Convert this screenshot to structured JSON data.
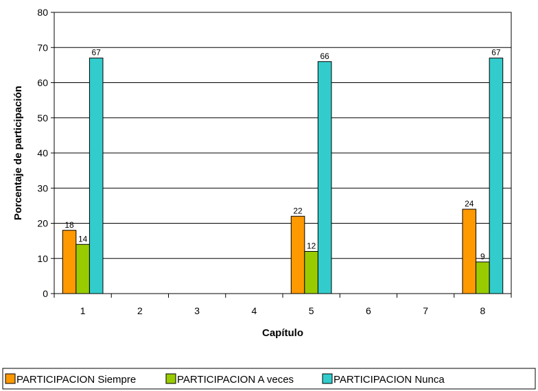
{
  "chart_data": {
    "type": "bar",
    "title": "",
    "xlabel": "Capítulo",
    "ylabel": "Porcentaje de participación",
    "categories": [
      "1",
      "2",
      "3",
      "4",
      "5",
      "6",
      "7",
      "8"
    ],
    "ylim": [
      0,
      80
    ],
    "yticks": [
      "0",
      "10",
      "20",
      "30",
      "40",
      "50",
      "60",
      "70",
      "80"
    ],
    "grid": true,
    "legend_position": "bottom",
    "series": [
      {
        "name": "PARTICIPACION Siempre",
        "color": "#ff9900",
        "values": [
          18,
          null,
          null,
          null,
          22,
          null,
          null,
          24
        ]
      },
      {
        "name": "PARTICIPACION A veces",
        "color": "#99cc00",
        "values": [
          14,
          null,
          null,
          null,
          12,
          null,
          null,
          9
        ]
      },
      {
        "name": "PARTICIPACION Nunca",
        "color": "#33cccc",
        "values": [
          67,
          null,
          null,
          null,
          66,
          null,
          null,
          67
        ]
      }
    ]
  }
}
